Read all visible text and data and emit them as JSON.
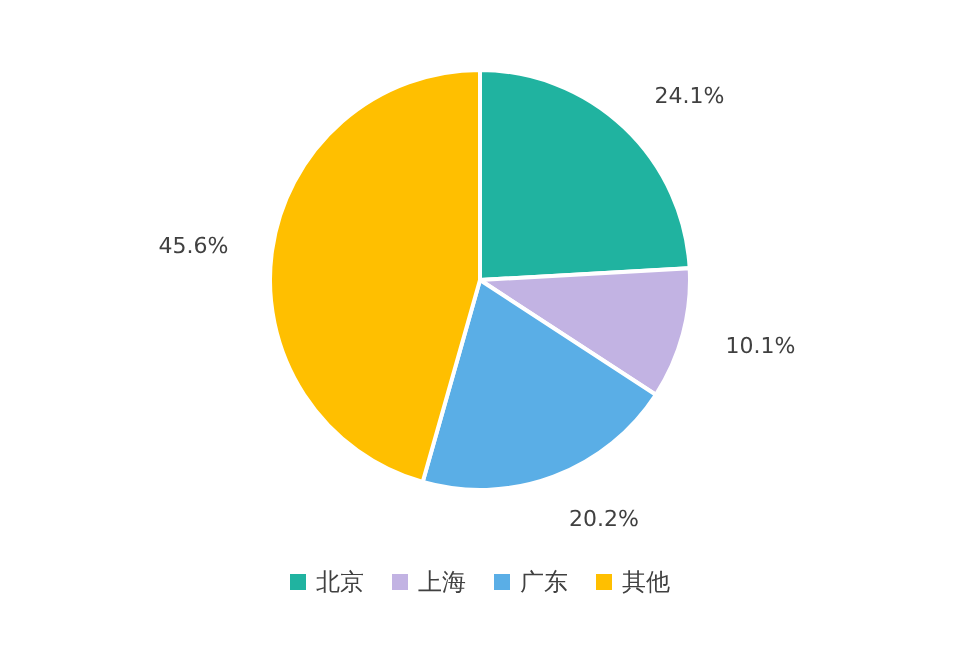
{
  "chart_data": {
    "type": "pie",
    "categories": [
      "北京",
      "上海",
      "广东",
      "其他"
    ],
    "values": [
      24.1,
      10.1,
      20.2,
      45.6
    ],
    "colors": [
      "#20b3a0",
      "#c2b3e3",
      "#5aaee6",
      "#ffbf00"
    ],
    "value_labels": [
      "24.1%",
      "10.1%",
      "20.2%",
      "45.6%"
    ],
    "legend": "bottom"
  }
}
